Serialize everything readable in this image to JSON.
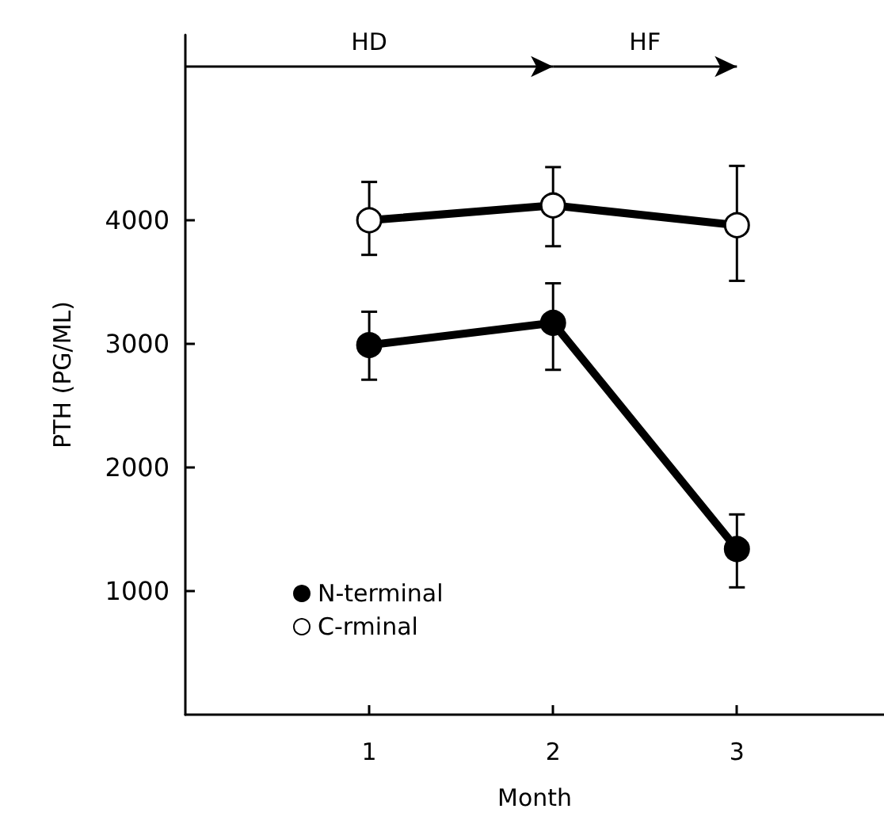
{
  "chart_data": {
    "type": "line",
    "xlabel": "Month",
    "ylabel": "PTH (PG/ML)",
    "xlim": [
      0,
      3.8
    ],
    "xticks": [
      1,
      2,
      3
    ],
    "ylim": [
      0,
      5500
    ],
    "yticks": [
      1000,
      2000,
      3000,
      4000
    ],
    "x": [
      1,
      2,
      3
    ],
    "series": [
      {
        "name": "N-terminal",
        "color": "#000000",
        "values": [
          2990,
          3170,
          1340
        ],
        "errors": [
          [
            2710,
            3260
          ],
          [
            2790,
            3490
          ],
          [
            1030,
            1620
          ]
        ]
      },
      {
        "name": "C-rminal",
        "color": "#000000",
        "colors": [
          "#ffffff",
          "#ffffff",
          "#ffffff"
        ],
        "values": [
          4000,
          4120,
          3960
        ],
        "errors": [
          [
            3720,
            4310
          ],
          [
            3790,
            4430
          ],
          [
            3510,
            4440
          ]
        ]
      }
    ],
    "annotations": [
      "HD",
      "HF"
    ],
    "marker": "circle",
    "grid": false,
    "legend": "bottom left"
  }
}
